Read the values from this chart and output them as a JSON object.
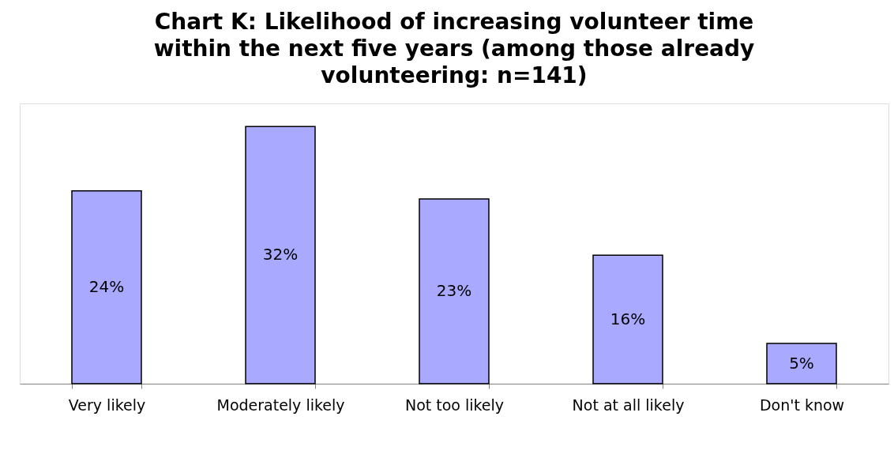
{
  "chart_data": {
    "type": "bar",
    "title": "Chart K: Likelihood of increasing volunteer time within the next five years (among those already volunteering: n=141)",
    "categories": [
      "Very likely",
      "Moderately likely",
      "Not too likely",
      "Not at all likely",
      "Don't know"
    ],
    "values": [
      24,
      32,
      23,
      16,
      5
    ],
    "value_labels": [
      "24%",
      "32%",
      "23%",
      "16%",
      "5%"
    ],
    "color": "#a9a9ff"
  }
}
